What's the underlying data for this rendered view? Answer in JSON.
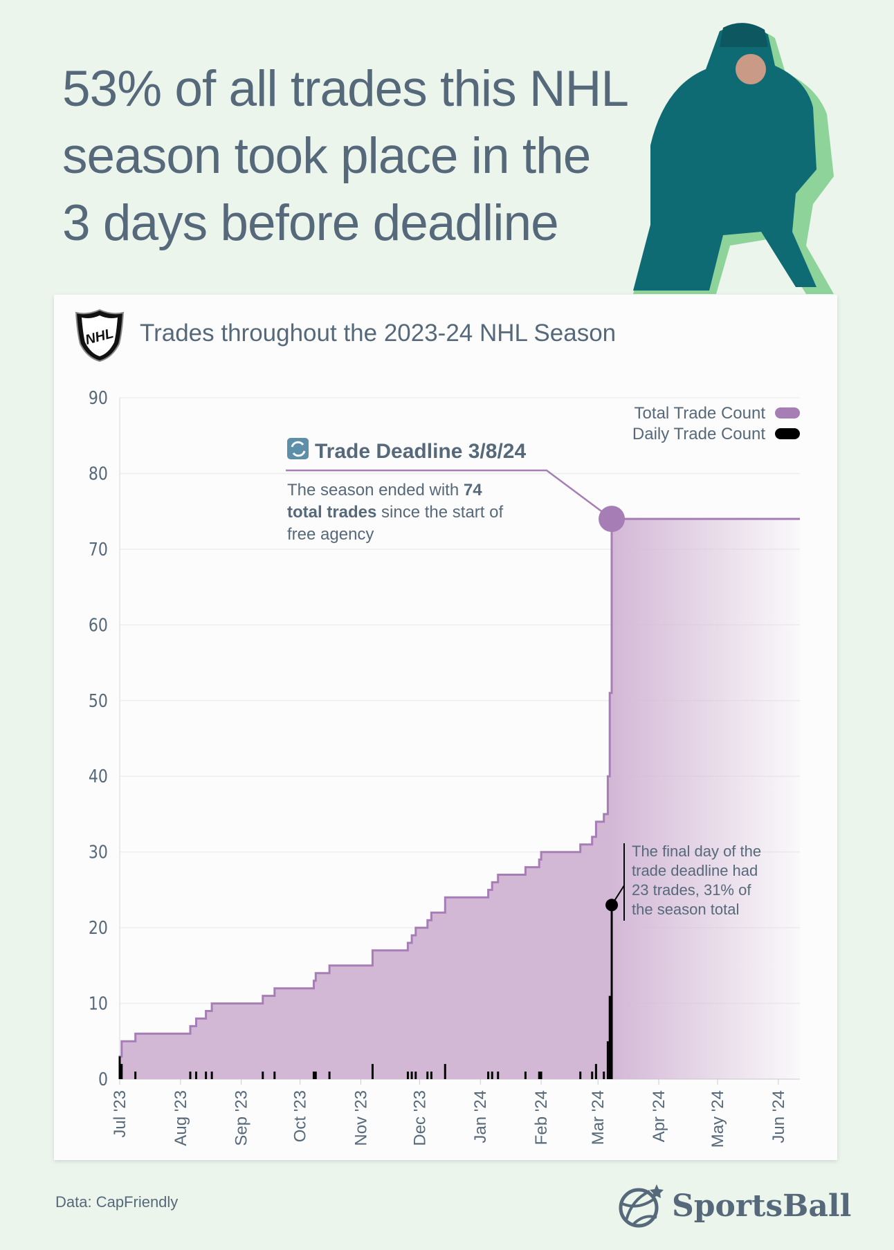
{
  "headline": "53% of all trades this NHL season took place in the 3 days before deadline",
  "chart_title": "Trades throughout the 2023-24 NHL Season",
  "logo_text": "NHL",
  "footer": {
    "source": "Data: CapFriendly",
    "brand": "SportsBall"
  },
  "colors": {
    "background": "#ebf5ec",
    "total_line": "#a67db5",
    "total_fill": "#d3b8d6",
    "daily": "#000000",
    "text": "#56697a"
  },
  "chart_data": {
    "type": "area",
    "title": "Trades throughout the 2023-24 NHL Season",
    "xlabel": "",
    "ylabel": "",
    "ylim": [
      0,
      90
    ],
    "xlim": [
      "2023-07-01",
      "2024-06-12"
    ],
    "yticks": [
      "0",
      "10",
      "20",
      "30",
      "40",
      "50",
      "60",
      "70",
      "80",
      "90"
    ],
    "xticks": [
      {
        "date": "2023-07-01",
        "label": "Jul '23"
      },
      {
        "date": "2023-08-01",
        "label": "Aug '23"
      },
      {
        "date": "2023-09-01",
        "label": "Sep '23"
      },
      {
        "date": "2023-10-01",
        "label": "Oct '23"
      },
      {
        "date": "2023-11-01",
        "label": "Nov '23"
      },
      {
        "date": "2023-12-01",
        "label": "Dec '23"
      },
      {
        "date": "2024-01-01",
        "label": "Jan '24"
      },
      {
        "date": "2024-02-01",
        "label": "Feb '24"
      },
      {
        "date": "2024-03-01",
        "label": "Mar '24"
      },
      {
        "date": "2024-04-01",
        "label": "Apr '24"
      },
      {
        "date": "2024-05-01",
        "label": "May '24"
      },
      {
        "date": "2024-06-01",
        "label": "Jun '24"
      }
    ],
    "grid": true,
    "legend_placement": "top-right",
    "series": [
      {
        "name": "Total Trade Count",
        "kind": "cumulative-step-area"
      },
      {
        "name": "Daily Trade Count",
        "kind": "bars"
      }
    ],
    "daily": [
      [
        "2023-07-01",
        3
      ],
      [
        "2023-07-02",
        2
      ],
      [
        "2023-07-09",
        1
      ],
      [
        "2023-08-06",
        1
      ],
      [
        "2023-08-09",
        1
      ],
      [
        "2023-08-14",
        1
      ],
      [
        "2023-08-17",
        1
      ],
      [
        "2023-09-12",
        1
      ],
      [
        "2023-09-18",
        1
      ],
      [
        "2023-10-08",
        1
      ],
      [
        "2023-10-09",
        1
      ],
      [
        "2023-10-16",
        1
      ],
      [
        "2023-11-07",
        2
      ],
      [
        "2023-11-25",
        1
      ],
      [
        "2023-11-27",
        1
      ],
      [
        "2023-11-29",
        1
      ],
      [
        "2023-12-05",
        1
      ],
      [
        "2023-12-07",
        1
      ],
      [
        "2023-12-14",
        2
      ],
      [
        "2024-01-05",
        1
      ],
      [
        "2024-01-07",
        1
      ],
      [
        "2024-01-10",
        1
      ],
      [
        "2024-01-24",
        1
      ],
      [
        "2024-01-31",
        1
      ],
      [
        "2024-02-01",
        1
      ],
      [
        "2024-02-21",
        1
      ],
      [
        "2024-02-27",
        1
      ],
      [
        "2024-02-29",
        2
      ],
      [
        "2024-03-04",
        1
      ],
      [
        "2024-03-06",
        5
      ],
      [
        "2024-03-07",
        11
      ],
      [
        "2024-03-08",
        23
      ]
    ],
    "final_total": 74,
    "annotations": {
      "deadline_title": "Trade Deadline 3/8/24",
      "deadline_text_1": "The season ended with ",
      "deadline_bold_1": "74",
      "deadline_bold_2": "total trades",
      "deadline_text_2": " since the start of",
      "deadline_text_3": "free agency",
      "final_day_lines": [
        "The final day of the",
        "trade deadline had",
        "23 trades, 31% of",
        "the season total"
      ]
    }
  }
}
